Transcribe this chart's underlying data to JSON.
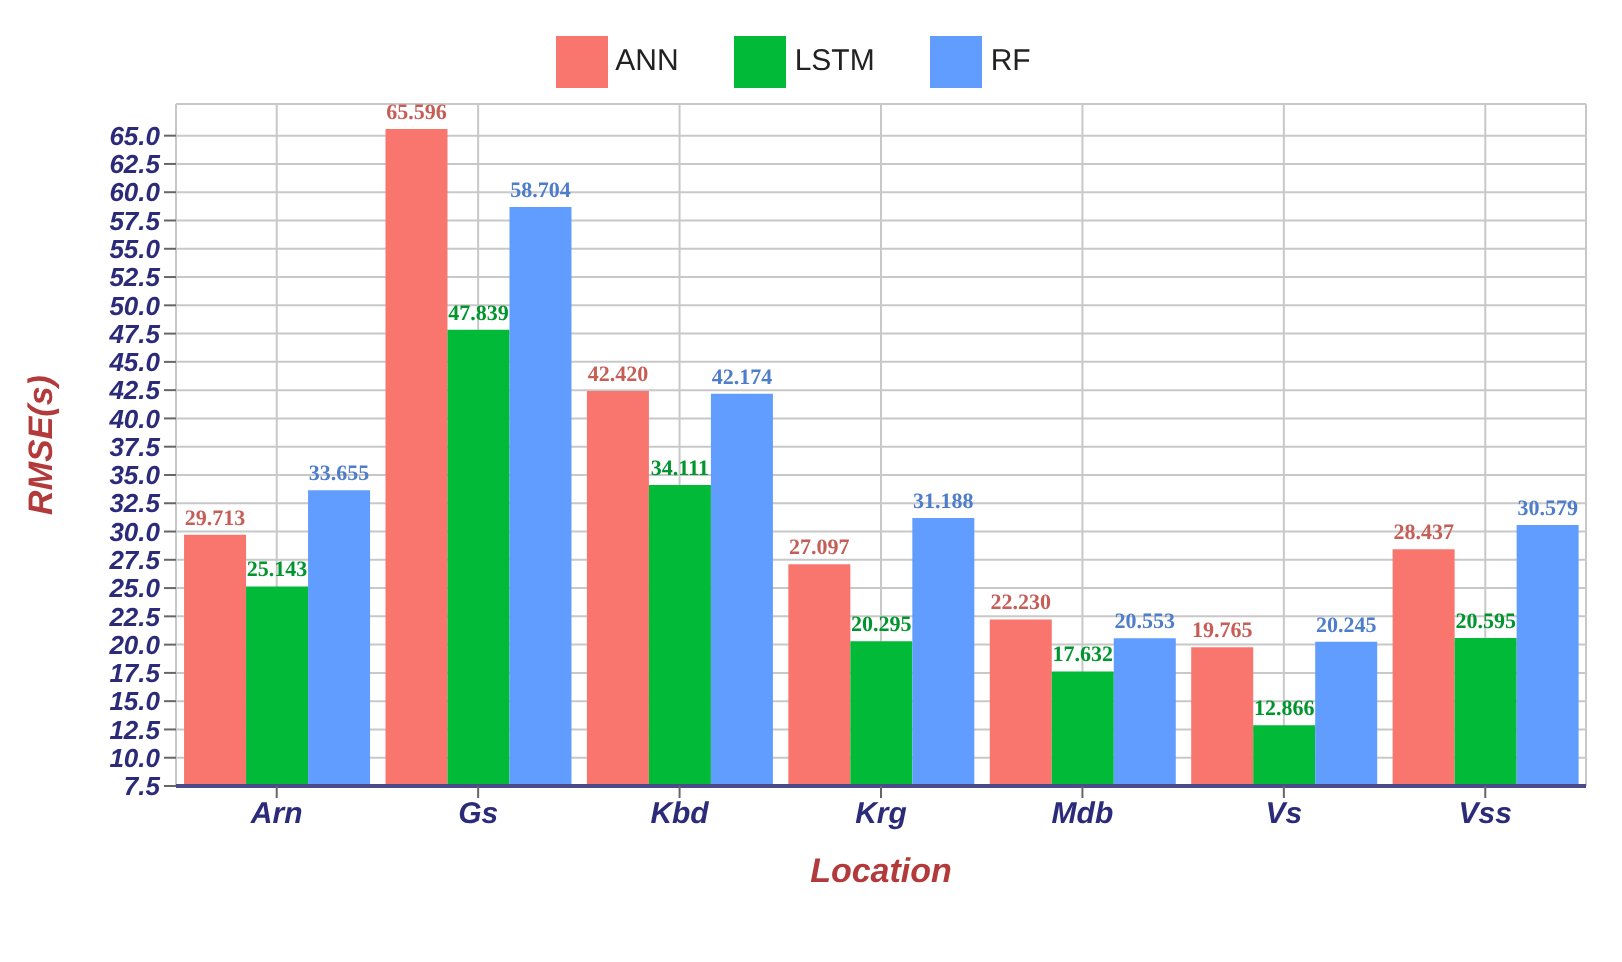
{
  "chart_data": {
    "type": "bar",
    "xlabel": "Location",
    "ylabel": "RMSE(s)",
    "categories": [
      "Arn",
      "Gs",
      "Kbd",
      "Krg",
      "Mdb",
      "Vs",
      "Vss"
    ],
    "series": [
      {
        "name": "ANN",
        "color": "#f8766d",
        "values": [
          29.713,
          65.596,
          42.42,
          27.097,
          22.23,
          19.765,
          28.437
        ],
        "value_labels": [
          "29.713",
          "65.596",
          "42.420",
          "27.097",
          "22.230",
          "19.765",
          "28.437"
        ]
      },
      {
        "name": "LSTM",
        "color": "#00ba38",
        "values": [
          25.143,
          47.839,
          34.111,
          20.295,
          17.632,
          12.866,
          20.595
        ],
        "value_labels": [
          "25.143",
          "47.839",
          "34.111",
          "20.295",
          "17.632",
          "12.866",
          "20.595"
        ]
      },
      {
        "name": "RF",
        "color": "#619cff",
        "values": [
          33.655,
          58.704,
          42.174,
          31.188,
          20.553,
          20.245,
          30.579
        ],
        "value_labels": [
          "33.655",
          "58.704",
          "42.174",
          "31.188",
          "20.553",
          "20.245",
          "30.579"
        ]
      }
    ],
    "ylim": [
      7.5,
      67.8
    ],
    "yticks": [
      {
        "value": 7.5,
        "label": "7.5"
      },
      {
        "value": 10,
        "label": "10.0"
      },
      {
        "value": 12.5,
        "label": "12.5"
      },
      {
        "value": 15,
        "label": "15.0"
      },
      {
        "value": 17.5,
        "label": "17.5"
      },
      {
        "value": 20,
        "label": "20.0"
      },
      {
        "value": 22.5,
        "label": "22.5"
      },
      {
        "value": 25,
        "label": "25.0"
      },
      {
        "value": 27.5,
        "label": "27.5"
      },
      {
        "value": 30,
        "label": "30.0"
      },
      {
        "value": 32.5,
        "label": "32.5"
      },
      {
        "value": 35,
        "label": "35.0"
      },
      {
        "value": 37.5,
        "label": "37.5"
      },
      {
        "value": 40,
        "label": "40.0"
      },
      {
        "value": 42.5,
        "label": "42.5"
      },
      {
        "value": 45,
        "label": "45.0"
      },
      {
        "value": 47.5,
        "label": "47.5"
      },
      {
        "value": 50,
        "label": "50.0"
      },
      {
        "value": 52.5,
        "label": "52.5"
      },
      {
        "value": 55,
        "label": "55.0"
      },
      {
        "value": 57.5,
        "label": "57.5"
      },
      {
        "value": 60,
        "label": "60.0"
      },
      {
        "value": 62.5,
        "label": "62.5"
      },
      {
        "value": 65,
        "label": "65.0"
      }
    ],
    "grid": true,
    "legend": "top"
  }
}
